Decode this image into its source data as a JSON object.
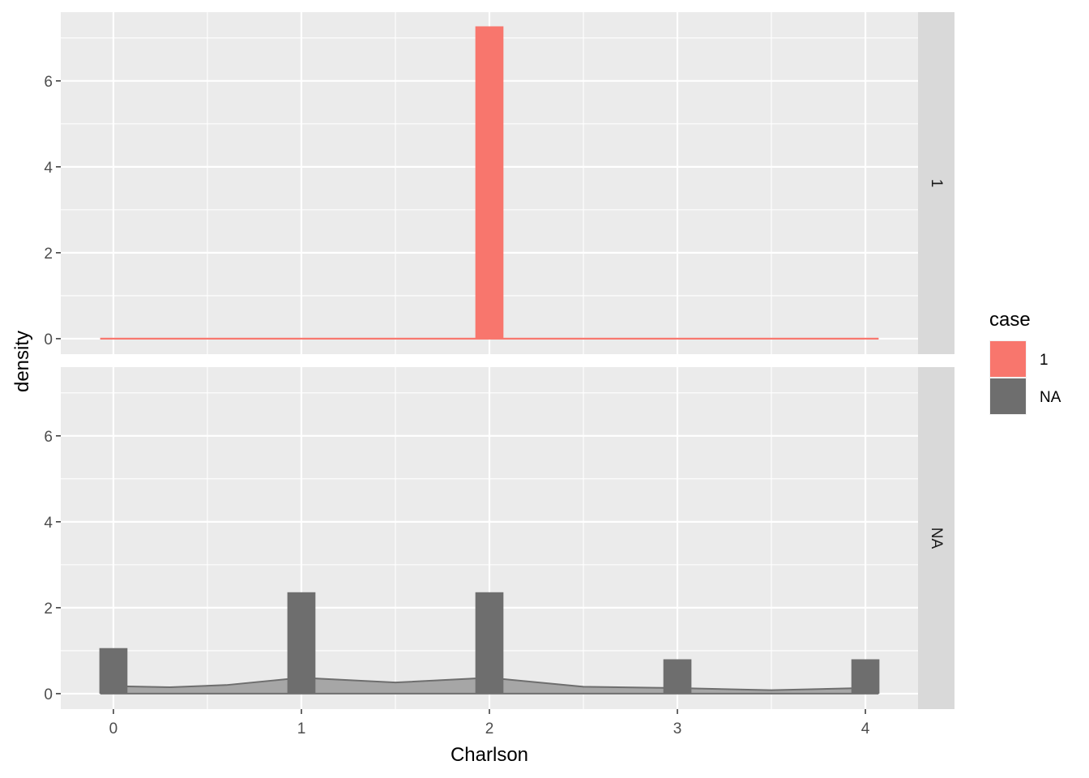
{
  "chart_data": {
    "type": "bar",
    "xlabel": "Charlson",
    "ylabel": "density",
    "xlim": [
      -0.28,
      4.28
    ],
    "ylim": [
      -0.36,
      7.6
    ],
    "x_ticks": [
      0,
      1,
      2,
      3,
      4
    ],
    "x_minor": [
      0.5,
      1.5,
      2.5,
      3.5
    ],
    "y_ticks": [
      0,
      2,
      4,
      6
    ],
    "y_minor": [
      1,
      3,
      5,
      7
    ],
    "bin_width": 0.1494,
    "grid": true,
    "legend": {
      "title": "case",
      "placement": "right",
      "entries": [
        {
          "label": "1",
          "color": "#F8766D"
        },
        {
          "label": "NA",
          "color": "#6E6E6E"
        }
      ]
    },
    "panels": [
      {
        "strip_label": "1",
        "fill_color": "#F8766D",
        "bars": [
          {
            "x": 2,
            "density": 7.27
          }
        ],
        "density_curve": {
          "x": [
            -0.07,
            1.87,
            1.87,
            2.0,
            2.0,
            4.07
          ],
          "y": [
            0,
            0,
            0,
            0,
            0,
            0
          ]
        }
      },
      {
        "strip_label": "NA",
        "fill_color": "#6E6E6E",
        "bars": [
          {
            "x": 0,
            "density": 1.06
          },
          {
            "x": 1,
            "density": 2.36
          },
          {
            "x": 2,
            "density": 2.36
          },
          {
            "x": 3,
            "density": 0.8
          },
          {
            "x": 4,
            "density": 0.8
          }
        ],
        "density_curve": {
          "x": [
            -0.07,
            0.3,
            0.6,
            1.0,
            1.5,
            2.0,
            2.5,
            3.0,
            3.5,
            4.07
          ],
          "y": [
            0.18,
            0.15,
            0.2,
            0.37,
            0.26,
            0.37,
            0.16,
            0.13,
            0.08,
            0.14
          ]
        }
      }
    ]
  }
}
